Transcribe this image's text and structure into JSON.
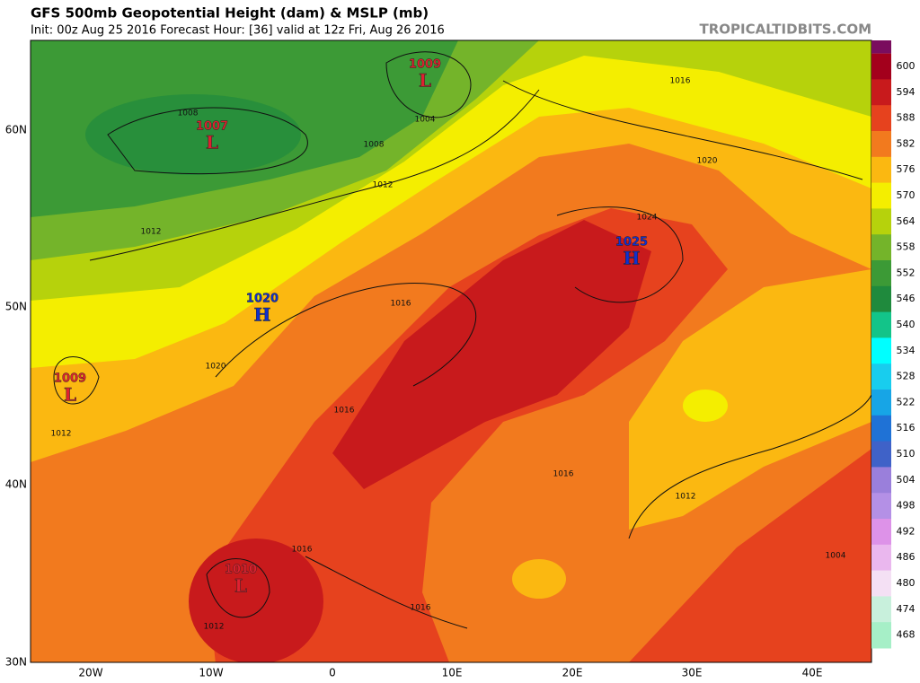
{
  "header": {
    "title": "GFS 500mb Geopotential Height (dam) & MSLP (mb)",
    "subtitle": "Init: 00z Aug 25 2016   Forecast Hour: [36]   valid at 12z Fri, Aug 26 2016",
    "source": "TROPICALTIDBITS.COM"
  },
  "map": {
    "lat_labels": [
      "60N",
      "50N",
      "40N",
      "30N"
    ],
    "lon_labels": [
      "20W",
      "10W",
      "0",
      "10E",
      "20E",
      "30E",
      "40E"
    ],
    "centers": [
      {
        "value": "1009",
        "symbol": "L"
      },
      {
        "value": "1007",
        "symbol": "L"
      },
      {
        "value": "1020",
        "symbol": "H"
      },
      {
        "value": "1025",
        "symbol": "H"
      },
      {
        "value": "1009",
        "symbol": "L"
      },
      {
        "value": "1010",
        "symbol": "L"
      }
    ],
    "contour_labels": [
      "1008",
      "1004",
      "1008",
      "1012",
      "1012",
      "1016",
      "1020",
      "1024",
      "1016",
      "1020",
      "1016",
      "1012",
      "1016",
      "1012",
      "1016",
      "1004",
      "1016",
      "1012"
    ]
  },
  "colorbar": {
    "levels": [
      600,
      594,
      588,
      582,
      576,
      570,
      564,
      558,
      552,
      546,
      540,
      534,
      528,
      522,
      516,
      510,
      504,
      498,
      492,
      486,
      480,
      474,
      468
    ],
    "colors": [
      "#a3001c",
      "#c81a1c",
      "#e6421e",
      "#f27a1e",
      "#fbb811",
      "#f4ee00",
      "#b6d20c",
      "#74b42a",
      "#3c9a36",
      "#1f8a3d",
      "#13c489",
      "#00ffff",
      "#18cdee",
      "#17a5e6",
      "#1f72d6",
      "#3f62c8",
      "#9a7fdb",
      "#b490e6",
      "#dd92e8",
      "#eab7ee",
      "#f4e0f4",
      "#c8f0dc",
      "#a6efc7"
    ],
    "top_color": "#7a0d5e"
  }
}
